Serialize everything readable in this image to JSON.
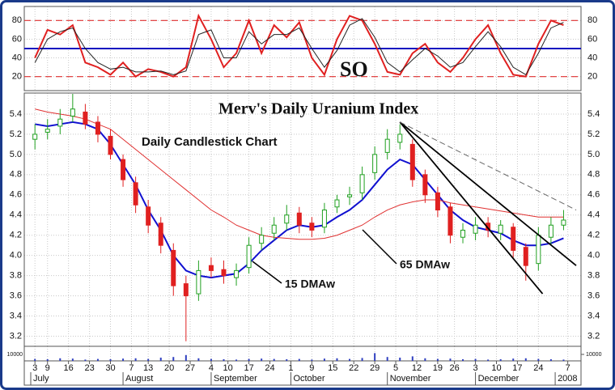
{
  "chart_data": {
    "type": "candlestick",
    "title": "Merv's Daily Uranium Index",
    "subtitle": "Daily Candlestick Chart",
    "x": [
      1,
      4,
      7,
      10,
      13,
      16,
      19,
      22,
      25,
      28,
      31,
      34,
      37,
      40,
      43,
      46,
      49,
      52,
      55,
      58,
      61,
      64,
      67,
      70,
      73,
      76,
      79,
      82,
      85,
      88,
      91,
      94,
      97,
      100,
      103,
      106,
      109,
      112,
      115,
      118,
      121,
      124,
      127
    ],
    "xlim": [
      0,
      130
    ],
    "xticks": [
      {
        "value": 1,
        "label": "3"
      },
      {
        "value": 4,
        "label": "9"
      },
      {
        "value": 9,
        "label": "16"
      },
      {
        "value": 14,
        "label": "23"
      },
      {
        "value": 19,
        "label": "30"
      },
      {
        "value": 24,
        "label": "7"
      },
      {
        "value": 28,
        "label": "13"
      },
      {
        "value": 33,
        "label": "20"
      },
      {
        "value": 38,
        "label": "27"
      },
      {
        "value": 43,
        "label": "4"
      },
      {
        "value": 47,
        "label": "10"
      },
      {
        "value": 52,
        "label": "17"
      },
      {
        "value": 57,
        "label": "24"
      },
      {
        "value": 62,
        "label": "1"
      },
      {
        "value": 67,
        "label": "9"
      },
      {
        "value": 72,
        "label": "15"
      },
      {
        "value": 77,
        "label": "22"
      },
      {
        "value": 82,
        "label": "29"
      },
      {
        "value": 87,
        "label": "5"
      },
      {
        "value": 92,
        "label": "12"
      },
      {
        "value": 97,
        "label": "19"
      },
      {
        "value": 101,
        "label": "26"
      },
      {
        "value": 106,
        "label": "3"
      },
      {
        "value": 111,
        "label": "10"
      },
      {
        "value": 116,
        "label": "17"
      },
      {
        "value": 121,
        "label": "24"
      },
      {
        "value": 128,
        "label": "7"
      }
    ],
    "months": [
      {
        "value": 0,
        "label": "July"
      },
      {
        "value": 22,
        "label": "August"
      },
      {
        "value": 43,
        "label": "September"
      },
      {
        "value": 62,
        "label": "October"
      },
      {
        "value": 85,
        "label": "November"
      },
      {
        "value": 106,
        "label": "December"
      },
      {
        "value": 125,
        "label": "2008"
      }
    ],
    "ylim": [
      3.1,
      5.6
    ],
    "yticks": [
      3.2,
      3.4,
      3.6,
      3.8,
      {
        "value": 4,
        "label": "4.0"
      },
      4.2,
      4.4,
      4.6,
      4.8,
      {
        "value": 5,
        "label": "5.0"
      },
      5.2,
      5.4
    ],
    "open": [
      5.15,
      5.22,
      5.28,
      5.38,
      5.42,
      5.32,
      5.18,
      4.95,
      4.72,
      4.48,
      4.32,
      4.05,
      3.72,
      3.62,
      3.9,
      3.86,
      3.78,
      3.88,
      4.12,
      4.22,
      4.32,
      4.42,
      4.32,
      4.28,
      4.48,
      4.58,
      4.62,
      4.82,
      5.02,
      5.12,
      5.1,
      4.8,
      4.62,
      4.48,
      4.18,
      4.22,
      4.32,
      4.22,
      4.28,
      4.08,
      3.92,
      4.18,
      4.3
    ],
    "high": [
      5.3,
      5.35,
      5.45,
      5.6,
      5.5,
      5.38,
      5.25,
      5.0,
      4.78,
      4.55,
      4.38,
      4.12,
      3.8,
      3.95,
      3.98,
      3.95,
      3.92,
      4.18,
      4.28,
      4.38,
      4.5,
      4.48,
      4.38,
      4.52,
      4.6,
      4.68,
      4.88,
      5.08,
      5.25,
      5.3,
      5.15,
      4.85,
      4.68,
      4.52,
      4.32,
      4.38,
      4.38,
      4.35,
      4.32,
      4.12,
      4.28,
      4.38,
      4.45
    ],
    "low": [
      5.05,
      5.15,
      5.2,
      5.32,
      5.25,
      5.12,
      4.95,
      4.68,
      4.42,
      4.22,
      4.02,
      3.6,
      3.15,
      3.55,
      3.78,
      3.72,
      3.7,
      3.82,
      4.05,
      4.15,
      4.25,
      4.22,
      4.18,
      4.22,
      4.42,
      4.5,
      4.55,
      4.75,
      4.95,
      5.05,
      4.68,
      4.52,
      4.38,
      4.12,
      4.12,
      4.15,
      4.18,
      4.15,
      3.98,
      3.75,
      3.85,
      4.1,
      4.25
    ],
    "close": [
      5.2,
      5.25,
      5.35,
      5.45,
      5.3,
      5.2,
      5.0,
      4.75,
      4.5,
      4.3,
      4.1,
      3.7,
      3.6,
      3.85,
      3.85,
      3.8,
      3.85,
      4.1,
      4.2,
      4.3,
      4.4,
      4.3,
      4.25,
      4.45,
      4.55,
      4.6,
      4.8,
      5.0,
      5.15,
      5.2,
      4.75,
      4.6,
      4.45,
      4.2,
      4.25,
      4.3,
      4.25,
      4.3,
      4.05,
      3.9,
      4.2,
      4.3,
      4.35
    ],
    "up_color": "#20a020",
    "down_color": "#e02020",
    "series": [
      {
        "name": "15 DMAw",
        "color": "#1010d0",
        "values": [
          5.3,
          5.28,
          5.3,
          5.32,
          5.3,
          5.25,
          5.1,
          4.9,
          4.7,
          4.45,
          4.25,
          4.0,
          3.85,
          3.8,
          3.78,
          3.8,
          3.82,
          3.92,
          4.05,
          4.15,
          4.25,
          4.3,
          4.28,
          4.3,
          4.38,
          4.45,
          4.55,
          4.7,
          4.85,
          4.95,
          4.9,
          4.75,
          4.6,
          4.45,
          4.35,
          4.28,
          4.25,
          4.22,
          4.15,
          4.1,
          4.1,
          4.12,
          4.17
        ]
      },
      {
        "name": "65 DMAw",
        "color": "#e03030",
        "values": [
          5.45,
          5.42,
          5.4,
          5.38,
          5.35,
          5.3,
          5.25,
          5.15,
          5.05,
          4.95,
          4.85,
          4.75,
          4.65,
          4.55,
          4.45,
          4.38,
          4.3,
          4.25,
          4.2,
          4.18,
          4.17,
          4.16,
          4.16,
          4.17,
          4.2,
          4.25,
          4.3,
          4.38,
          4.45,
          4.5,
          4.53,
          4.55,
          4.55,
          4.52,
          4.5,
          4.48,
          4.46,
          4.44,
          4.42,
          4.4,
          4.38,
          4.38,
          4.38
        ]
      }
    ],
    "trend_lines": [
      {
        "x": [
          88,
          122
        ],
        "y": [
          5.32,
          3.62
        ],
        "dashed": false
      },
      {
        "x": [
          88,
          130
        ],
        "y": [
          5.32,
          3.9
        ],
        "dashed": false
      },
      {
        "x": [
          88,
          130
        ],
        "y": [
          5.32,
          4.45
        ],
        "dashed": true
      }
    ],
    "oscillator": {
      "name": "SO",
      "ylim": [
        5,
        95
      ],
      "yticks": [
        20,
        40,
        60,
        80
      ],
      "levels": [
        {
          "value": 20,
          "color": "#e03030",
          "dashed": true
        },
        {
          "value": 50,
          "color": "#1010c0",
          "dashed": false
        },
        {
          "value": 80,
          "color": "#e03030",
          "dashed": true
        }
      ],
      "series": [
        {
          "color": "#e02020",
          "values": [
            40,
            70,
            65,
            75,
            35,
            30,
            22,
            35,
            20,
            28,
            25,
            20,
            30,
            85,
            60,
            30,
            45,
            80,
            45,
            75,
            62,
            78,
            40,
            22,
            60,
            85,
            80,
            55,
            25,
            22,
            45,
            55,
            35,
            25,
            40,
            60,
            75,
            45,
            22,
            20,
            55,
            80,
            75
          ]
        },
        {
          "color": "#222222",
          "values": [
            35,
            60,
            68,
            72,
            50,
            35,
            28,
            30,
            25,
            25,
            26,
            22,
            26,
            65,
            70,
            40,
            40,
            68,
            55,
            65,
            65,
            72,
            50,
            30,
            48,
            75,
            82,
            62,
            35,
            25,
            38,
            50,
            42,
            30,
            35,
            52,
            68,
            52,
            30,
            22,
            45,
            72,
            78
          ]
        }
      ]
    },
    "volume": {
      "ylim": [
        0,
        20000
      ],
      "yticks": [
        {
          "value": 10000,
          "label": "10000"
        }
      ],
      "color": "#3040c0",
      "values": [
        3000,
        2500,
        4000,
        3500,
        2000,
        3000,
        2500,
        3500,
        4000,
        3000,
        5000,
        6000,
        9000,
        4000,
        3000,
        2500,
        2000,
        3000,
        3500,
        3000,
        2500,
        3000,
        2000,
        3500,
        4000,
        3000,
        4500,
        12000,
        6000,
        5000,
        7000,
        4000,
        3000,
        3500,
        2500,
        3000,
        2000,
        2500,
        3500,
        4000,
        3000,
        2500,
        2000
      ]
    },
    "grid": true
  }
}
